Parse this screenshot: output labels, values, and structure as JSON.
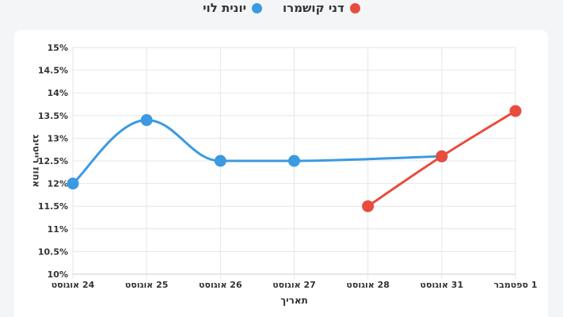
{
  "chart_data": {
    "type": "line",
    "xlabel": "תאריך",
    "ylabel": "אחוז רייטינג",
    "ylim": [
      10,
      15
    ],
    "yticks": [
      "10%",
      "10.5%",
      "11%",
      "11.5%",
      "12%",
      "12.5%",
      "13%",
      "13.5%",
      "14%",
      "14.5%",
      "15%"
    ],
    "categories": [
      "24 אוגוסט",
      "25 אוגוסט",
      "26 אוגוסט",
      "27 אוגוסט",
      "28 אוגוסט",
      "31 אוגוסט",
      "1 ספטמבר"
    ],
    "grid": true,
    "legend_position": "top-center",
    "series": [
      {
        "name": "יונית לוי",
        "color": "#3b9ae1",
        "values": [
          12.0,
          13.4,
          12.5,
          12.5,
          null,
          12.6,
          null
        ]
      },
      {
        "name": "דני קושמרו",
        "color": "#e84c3d",
        "values": [
          null,
          null,
          null,
          null,
          11.5,
          12.6,
          13.6
        ]
      }
    ]
  }
}
